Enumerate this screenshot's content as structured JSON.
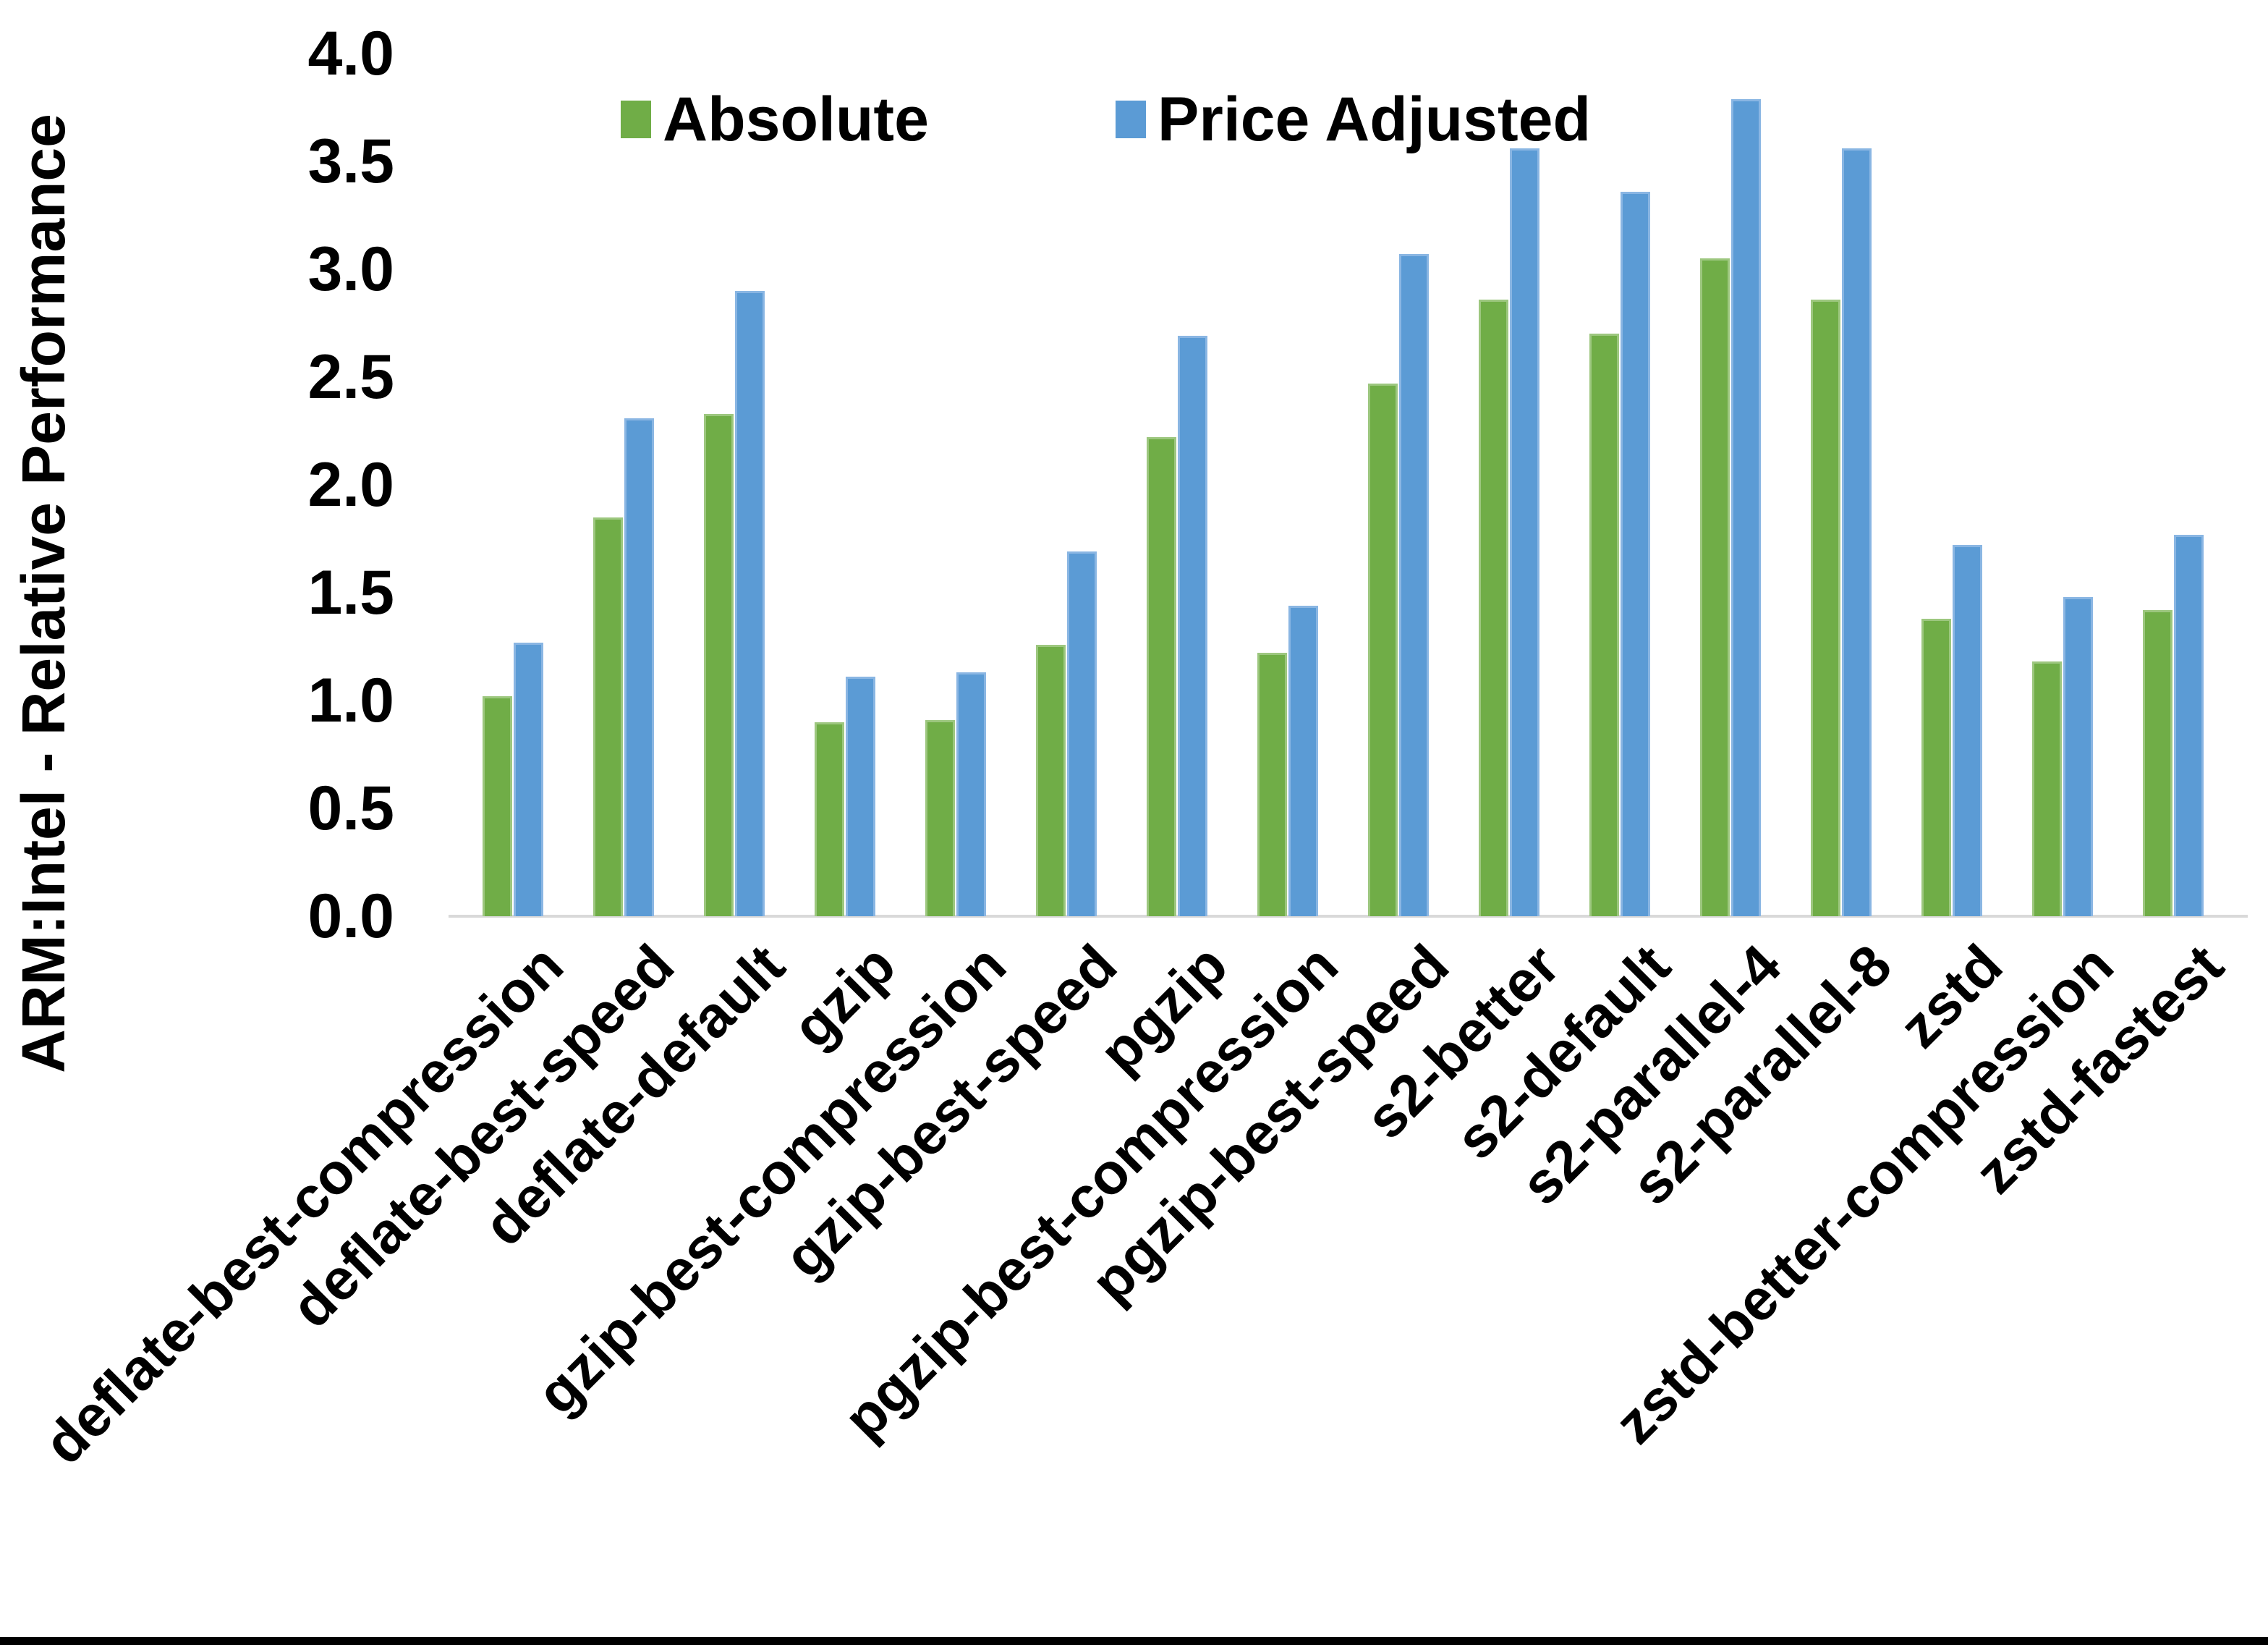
{
  "chart_data": {
    "type": "bar",
    "title": "",
    "ylabel": "ARM:Intel - Relative Performance",
    "xlabel": "",
    "ylim": [
      0.0,
      4.0
    ],
    "ytick_step": 0.5,
    "ytick_labels": [
      "0.0",
      "0.5",
      "1.0",
      "1.5",
      "2.0",
      "2.5",
      "3.0",
      "3.5",
      "4.0"
    ],
    "grid": false,
    "legend_position": "top",
    "axis_line_color": "#d9d9d9",
    "categories": [
      "deflate-best-compression",
      "deflate-best-speed",
      "deflate-default",
      "gzip",
      "gzip-best-compression",
      "gzip-best-speed",
      "pgzip",
      "pgzip-best-compression",
      "pgzip-best-speed",
      "s2-better",
      "s2-default",
      "s2-parallel-4",
      "s2-parallel-8",
      "zstd",
      "zstd-better-compression",
      "zstd-fastest"
    ],
    "series": [
      {
        "name": "Absolute",
        "color": "#70AD47",
        "values": [
          1.02,
          1.85,
          2.33,
          0.9,
          0.91,
          1.26,
          2.22,
          1.22,
          2.47,
          2.86,
          2.7,
          3.05,
          2.86,
          1.38,
          1.18,
          1.42
        ]
      },
      {
        "name": "Price Adjusted",
        "color": "#5B9BD5",
        "values": [
          1.27,
          2.31,
          2.9,
          1.11,
          1.13,
          1.69,
          2.69,
          1.44,
          3.07,
          3.56,
          3.36,
          3.79,
          3.56,
          1.72,
          1.48,
          1.77
        ]
      }
    ]
  }
}
